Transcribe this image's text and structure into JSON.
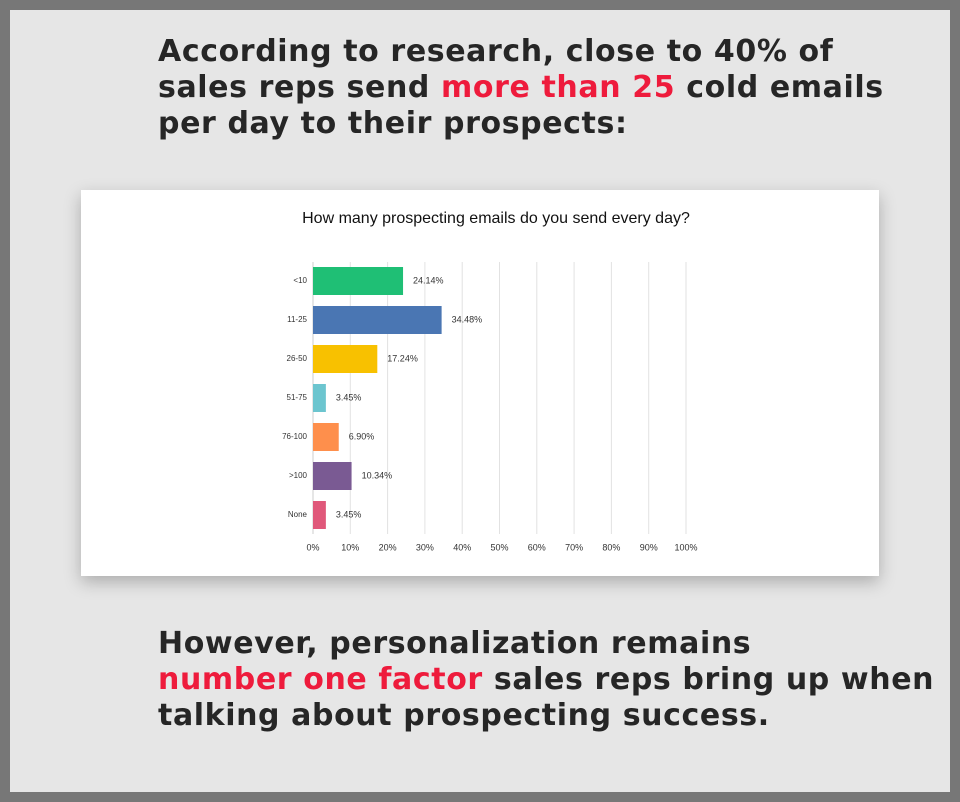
{
  "headline": {
    "lines": [
      [
        "According to research, close to 40% of"
      ],
      [
        "sales reps send ",
        "more than 25",
        " cold emails"
      ],
      [
        "per day to their prospects:"
      ]
    ]
  },
  "chart_data": {
    "type": "bar",
    "orientation": "horizontal",
    "title": "How many prospecting emails do you send every day?",
    "categories": [
      "<10",
      "11-25",
      "26-50",
      "51-75",
      "76-100",
      ">100",
      "None"
    ],
    "values": [
      24.14,
      34.48,
      17.24,
      3.45,
      6.9,
      10.34,
      3.45
    ],
    "value_labels": [
      "24.14%",
      "34.48%",
      "17.24%",
      "3.45%",
      "6.90%",
      "10.34%",
      "3.45%"
    ],
    "colors": [
      "#1fbf75",
      "#4a76b3",
      "#f8c100",
      "#6cc5cf",
      "#fe8f4c",
      "#7a5a93",
      "#e0587a"
    ],
    "xlim": [
      0,
      100
    ],
    "xticks": [
      {
        "value": 0,
        "label": "0%"
      },
      {
        "value": 10,
        "label": "10%"
      },
      {
        "value": 20,
        "label": "20%"
      },
      {
        "value": 30,
        "label": "30%"
      },
      {
        "value": 40,
        "label": "40%"
      },
      {
        "value": 50,
        "label": "50%"
      },
      {
        "value": 60,
        "label": "60%"
      },
      {
        "value": 70,
        "label": "70%"
      },
      {
        "value": 80,
        "label": "80%"
      },
      {
        "value": 90,
        "label": "90%"
      },
      {
        "value": 100,
        "label": "100%"
      }
    ],
    "grid": true
  },
  "footer": {
    "lines": [
      [
        "However, personalization remains"
      ],
      [
        "number one factor",
        " sales reps bring up when"
      ],
      [
        "talking about prospecting success."
      ]
    ]
  }
}
